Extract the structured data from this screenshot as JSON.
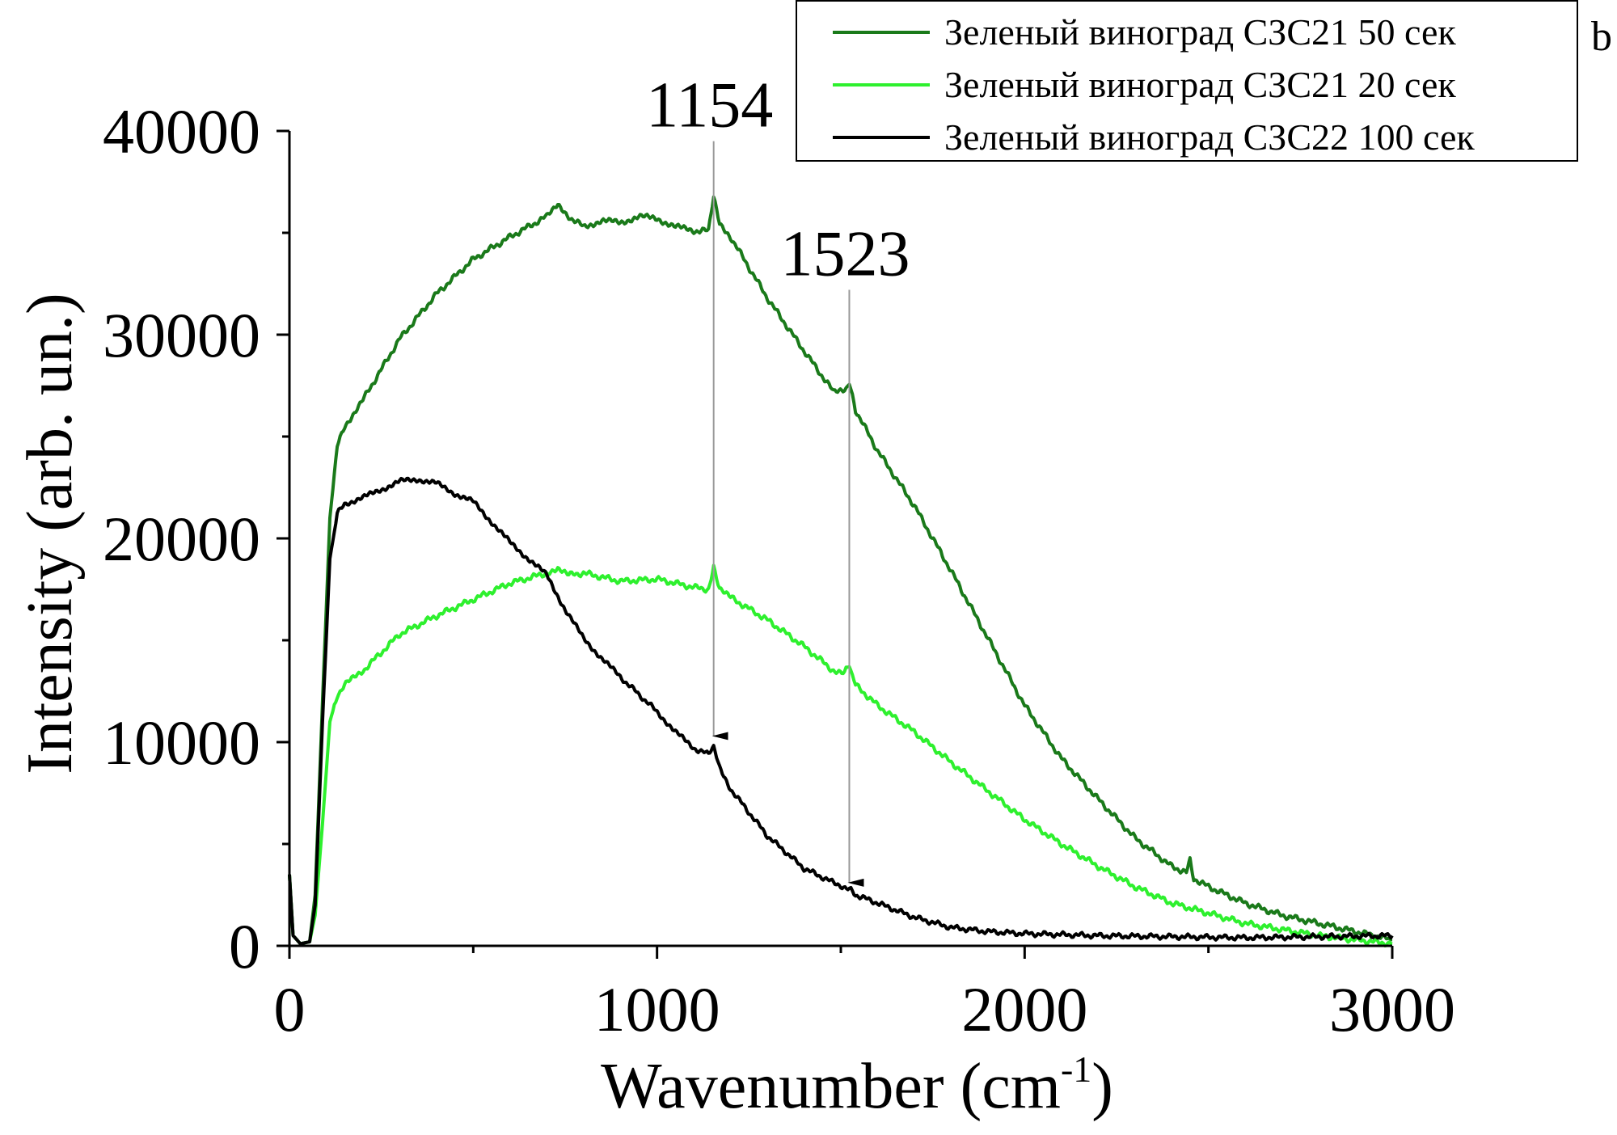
{
  "chart_data": {
    "type": "line",
    "panel_label": "b",
    "xlabel": "Wavenumber (cm",
    "xlabel_sup": "-1",
    "xlabel_close": ")",
    "ylabel": "Intensity (arb. un.)",
    "xlim": [
      0,
      3000
    ],
    "ylim": [
      0,
      40000
    ],
    "x_ticks": [
      0,
      1000,
      2000,
      3000
    ],
    "y_ticks": [
      0,
      10000,
      20000,
      30000,
      40000
    ],
    "x_minor_ticks": [
      500,
      1500,
      2500
    ],
    "y_minor_ticks": [
      5000,
      15000,
      25000,
      35000
    ],
    "legend_position": "top-right",
    "colors": {
      "dark_green": "#1a7a1a",
      "light_green": "#2ef02e",
      "black": "#000000",
      "annotation_line": "#9a9a9a"
    },
    "series": [
      {
        "name": "Зеленый виноград СЗС21 50 сек",
        "color": "#1a7a1a",
        "x": [
          0,
          10,
          30,
          55,
          70,
          90,
          110,
          130,
          150,
          200,
          300,
          400,
          500,
          600,
          700,
          730,
          760,
          800,
          850,
          900,
          950,
          1000,
          1050,
          1100,
          1140,
          1154,
          1170,
          1200,
          1260,
          1300,
          1400,
          1480,
          1510,
          1523,
          1540,
          1600,
          1700,
          1800,
          1900,
          2000,
          2100,
          2200,
          2300,
          2400,
          2440,
          2450,
          2460,
          2500,
          2600,
          2700,
          2800,
          2900,
          3000
        ],
        "y": [
          3500,
          500,
          100,
          200,
          2500,
          12000,
          21000,
          24500,
          25500,
          26800,
          29800,
          32000,
          33700,
          34800,
          35800,
          36400,
          35800,
          35300,
          35600,
          35500,
          35800,
          35700,
          35300,
          35100,
          35100,
          36700,
          35500,
          34800,
          33000,
          31800,
          29200,
          27200,
          27300,
          27600,
          26300,
          24300,
          21600,
          18400,
          15100,
          11800,
          9200,
          7200,
          5300,
          3900,
          3600,
          4300,
          3300,
          2900,
          2100,
          1500,
          1100,
          700,
          300
        ]
      },
      {
        "name": "Зеленый виноград СЗС21 20 сек",
        "color": "#2ef02e",
        "x": [
          0,
          10,
          30,
          55,
          70,
          90,
          110,
          130,
          150,
          200,
          300,
          400,
          500,
          600,
          700,
          730,
          760,
          800,
          900,
          1000,
          1100,
          1140,
          1154,
          1170,
          1200,
          1300,
          1400,
          1480,
          1510,
          1523,
          1540,
          1600,
          1700,
          1800,
          1900,
          2000,
          2100,
          2200,
          2300,
          2400,
          2500,
          2600,
          2700,
          2800,
          2900,
          3000
        ],
        "y": [
          3500,
          500,
          100,
          200,
          1500,
          6000,
          11000,
          12300,
          12800,
          13500,
          15300,
          16200,
          17000,
          17800,
          18300,
          18500,
          18200,
          18300,
          17900,
          18000,
          17600,
          17500,
          18700,
          17500,
          17100,
          16000,
          14700,
          13500,
          13400,
          13800,
          12800,
          11800,
          10500,
          9000,
          7600,
          6200,
          5000,
          3900,
          2900,
          2100,
          1600,
          1100,
          800,
          500,
          300,
          100
        ]
      },
      {
        "name": "Зеленый виноград СЗС22 100 сек",
        "color": "#000000",
        "x": [
          0,
          10,
          30,
          55,
          70,
          90,
          110,
          130,
          150,
          200,
          250,
          300,
          350,
          400,
          450,
          500,
          550,
          600,
          650,
          700,
          750,
          800,
          850,
          900,
          1000,
          1050,
          1100,
          1140,
          1154,
          1170,
          1200,
          1300,
          1400,
          1480,
          1523,
          1540,
          1600,
          1700,
          1800,
          1900,
          2000,
          2200,
          2400,
          2600,
          2800,
          3000
        ],
        "y": [
          3500,
          500,
          100,
          200,
          2000,
          11000,
          19000,
          21200,
          21700,
          22000,
          22400,
          22800,
          22900,
          22700,
          22200,
          21800,
          20800,
          19800,
          19000,
          18200,
          16500,
          15100,
          14100,
          13200,
          11500,
          10500,
          9700,
          9400,
          9700,
          8800,
          7700,
          5400,
          3800,
          3100,
          2800,
          2500,
          2100,
          1400,
          900,
          700,
          600,
          500,
          450,
          400,
          450,
          500
        ]
      }
    ],
    "annotations": [
      {
        "label": "1154",
        "x": 1154,
        "arrow_from_y": 39500,
        "arrow_to_y": 10300
      },
      {
        "label": "1523",
        "x": 1523,
        "arrow_from_y": 32200,
        "arrow_to_y": 3100
      }
    ]
  }
}
